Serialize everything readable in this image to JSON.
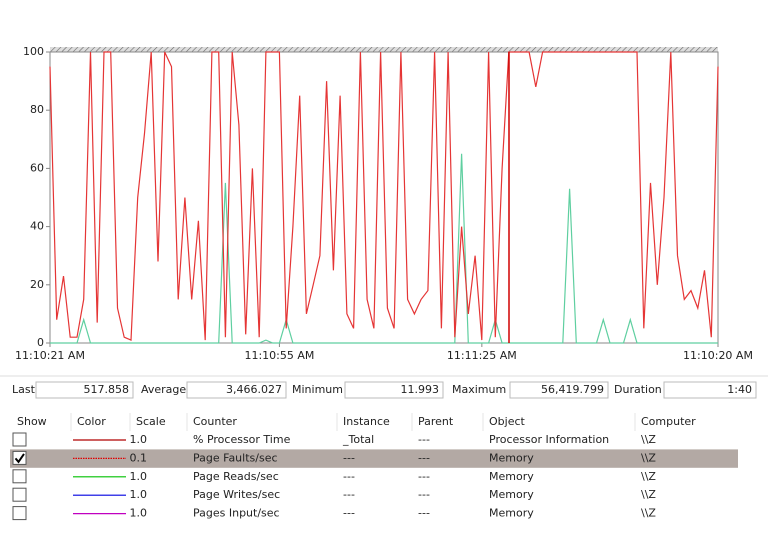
{
  "chart_data": {
    "type": "line",
    "ylim": [
      0,
      100
    ],
    "yticks": [
      0,
      20,
      40,
      60,
      80,
      100
    ],
    "xlim": [
      0,
      99
    ],
    "xticks": [
      {
        "value": 0,
        "label": "11:10:21 AM"
      },
      {
        "value": 34,
        "label": "11:10:55 AM"
      },
      {
        "value": 64,
        "label": "11:11:25 AM"
      },
      {
        "value": 99,
        "label": "11:10:20 AM"
      }
    ],
    "grid": false,
    "series": [
      {
        "color": "#5fcfa0",
        "values": [
          0,
          0,
          0,
          0,
          0,
          8,
          0,
          0,
          0,
          0,
          0,
          0,
          0,
          0,
          0,
          0,
          0,
          0,
          0,
          0,
          0,
          0,
          0,
          0,
          0,
          0,
          55,
          0,
          0,
          0,
          0,
          0,
          1,
          0,
          0,
          8,
          0,
          0,
          0,
          0,
          0,
          0,
          0,
          0,
          0,
          0,
          0,
          0,
          0,
          0,
          0,
          0,
          0,
          0,
          0,
          0,
          0,
          0,
          0,
          0,
          0,
          65,
          0,
          0,
          0,
          0,
          8,
          0,
          0,
          0,
          0,
          0,
          0,
          0,
          0,
          0,
          0,
          53,
          0,
          0,
          0,
          0,
          8,
          0,
          0,
          0,
          8,
          0,
          0,
          0,
          0,
          0,
          0,
          0,
          0,
          0,
          0,
          0,
          0,
          0
        ]
      },
      {
        "color": "#e53535",
        "values": [
          95,
          8,
          23,
          2,
          2,
          15,
          100,
          7,
          100,
          100,
          12,
          2,
          1,
          50,
          72,
          100,
          28,
          100,
          95,
          15,
          50,
          15,
          42,
          1,
          100,
          100,
          2,
          100,
          75,
          3,
          60,
          2,
          100,
          100,
          100,
          5,
          40,
          85,
          10,
          20,
          30,
          90,
          25,
          85,
          10,
          5,
          100,
          15,
          5,
          100,
          12,
          5,
          100,
          15,
          10,
          15,
          18,
          100,
          5,
          100,
          2,
          40,
          10,
          30,
          1,
          100,
          2,
          60,
          100,
          100,
          100,
          100,
          88,
          100,
          100,
          100,
          100,
          100,
          100,
          100,
          100,
          100,
          100,
          100,
          100,
          100,
          100,
          100,
          5,
          55,
          20,
          50,
          100,
          30,
          15,
          18,
          12,
          25,
          2,
          95
        ]
      }
    ]
  },
  "stats": [
    {
      "label": "Last",
      "value": "517.858"
    },
    {
      "label": "Average",
      "value": "3,466.027"
    },
    {
      "label": "Minimum",
      "value": "11.993"
    },
    {
      "label": "Maximum",
      "value": "56,419.799"
    },
    {
      "label": "Duration",
      "value": "1:40"
    }
  ],
  "table": {
    "headers": [
      "Show",
      "Color",
      "Scale",
      "Counter",
      "Instance",
      "Parent",
      "Object",
      "Computer"
    ],
    "rows": [
      {
        "checked": false,
        "selected": false,
        "color": "#b00000",
        "dashed": false,
        "scale": "1.0",
        "counter": "% Processor Time",
        "instance": "_Total",
        "parent": "---",
        "object": "Processor Information",
        "computer": "\\\\Z"
      },
      {
        "checked": true,
        "selected": true,
        "color": "#e00000",
        "dashed": true,
        "scale": "0.1",
        "counter": "Page Faults/sec",
        "instance": "---",
        "parent": "---",
        "object": "Memory",
        "computer": "\\\\Z"
      },
      {
        "checked": false,
        "selected": false,
        "color": "#00c000",
        "dashed": false,
        "scale": "1.0",
        "counter": "Page Reads/sec",
        "instance": "---",
        "parent": "---",
        "object": "Memory",
        "computer": "\\\\Z"
      },
      {
        "checked": false,
        "selected": false,
        "color": "#0000e0",
        "dashed": false,
        "scale": "1.0",
        "counter": "Page Writes/sec",
        "instance": "---",
        "parent": "---",
        "object": "Memory",
        "computer": "\\\\Z"
      },
      {
        "checked": false,
        "selected": false,
        "color": "#c000c0",
        "dashed": false,
        "scale": "1.0",
        "counter": "Pages Input/sec",
        "instance": "---",
        "parent": "---",
        "object": "Memory",
        "computer": "\\\\Z"
      }
    ]
  }
}
